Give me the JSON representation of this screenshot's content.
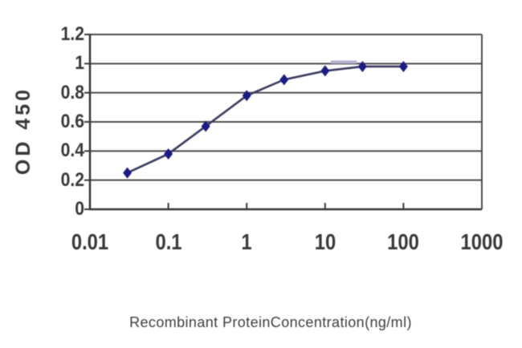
{
  "chart_data": {
    "type": "line",
    "title": "",
    "xlabel": "Recombinant ProteinConcentration(ng/ml)",
    "ylabel": "OD 450",
    "x_scale": "log",
    "xlim": [
      0.01,
      1000
    ],
    "ylim": [
      0,
      1.2
    ],
    "x_ticks": [
      0.01,
      0.1,
      1,
      10,
      100,
      1000
    ],
    "x_tick_labels": [
      "0.01",
      "0.1",
      "1",
      "10",
      "100",
      "1000"
    ],
    "y_ticks": [
      0,
      0.2,
      0.4,
      0.6,
      0.8,
      1,
      1.2
    ],
    "y_tick_labels": [
      "0",
      "0.2",
      "0.4",
      "0.6",
      "0.8",
      "1",
      "1.2"
    ],
    "grid": "horizontal",
    "legend": "none",
    "series": [
      {
        "name": "OD 450",
        "x": [
          0.03,
          0.1,
          0.3,
          1,
          3,
          10,
          30,
          100
        ],
        "y": [
          0.25,
          0.38,
          0.57,
          0.78,
          0.89,
          0.95,
          0.98,
          0.98
        ],
        "marker": "diamond",
        "line_color": "#3b3b5e",
        "marker_color": "#1b1b86"
      }
    ],
    "artifact_segment": {
      "between_x": [
        10,
        30
      ],
      "at_y": 1.0,
      "color": "#b7b3d2"
    },
    "colors": {
      "background": "#ffffff",
      "grid": "#4a4a4a",
      "axis": "#353535",
      "tick": "#3a3a3a",
      "text": "#383838"
    }
  }
}
